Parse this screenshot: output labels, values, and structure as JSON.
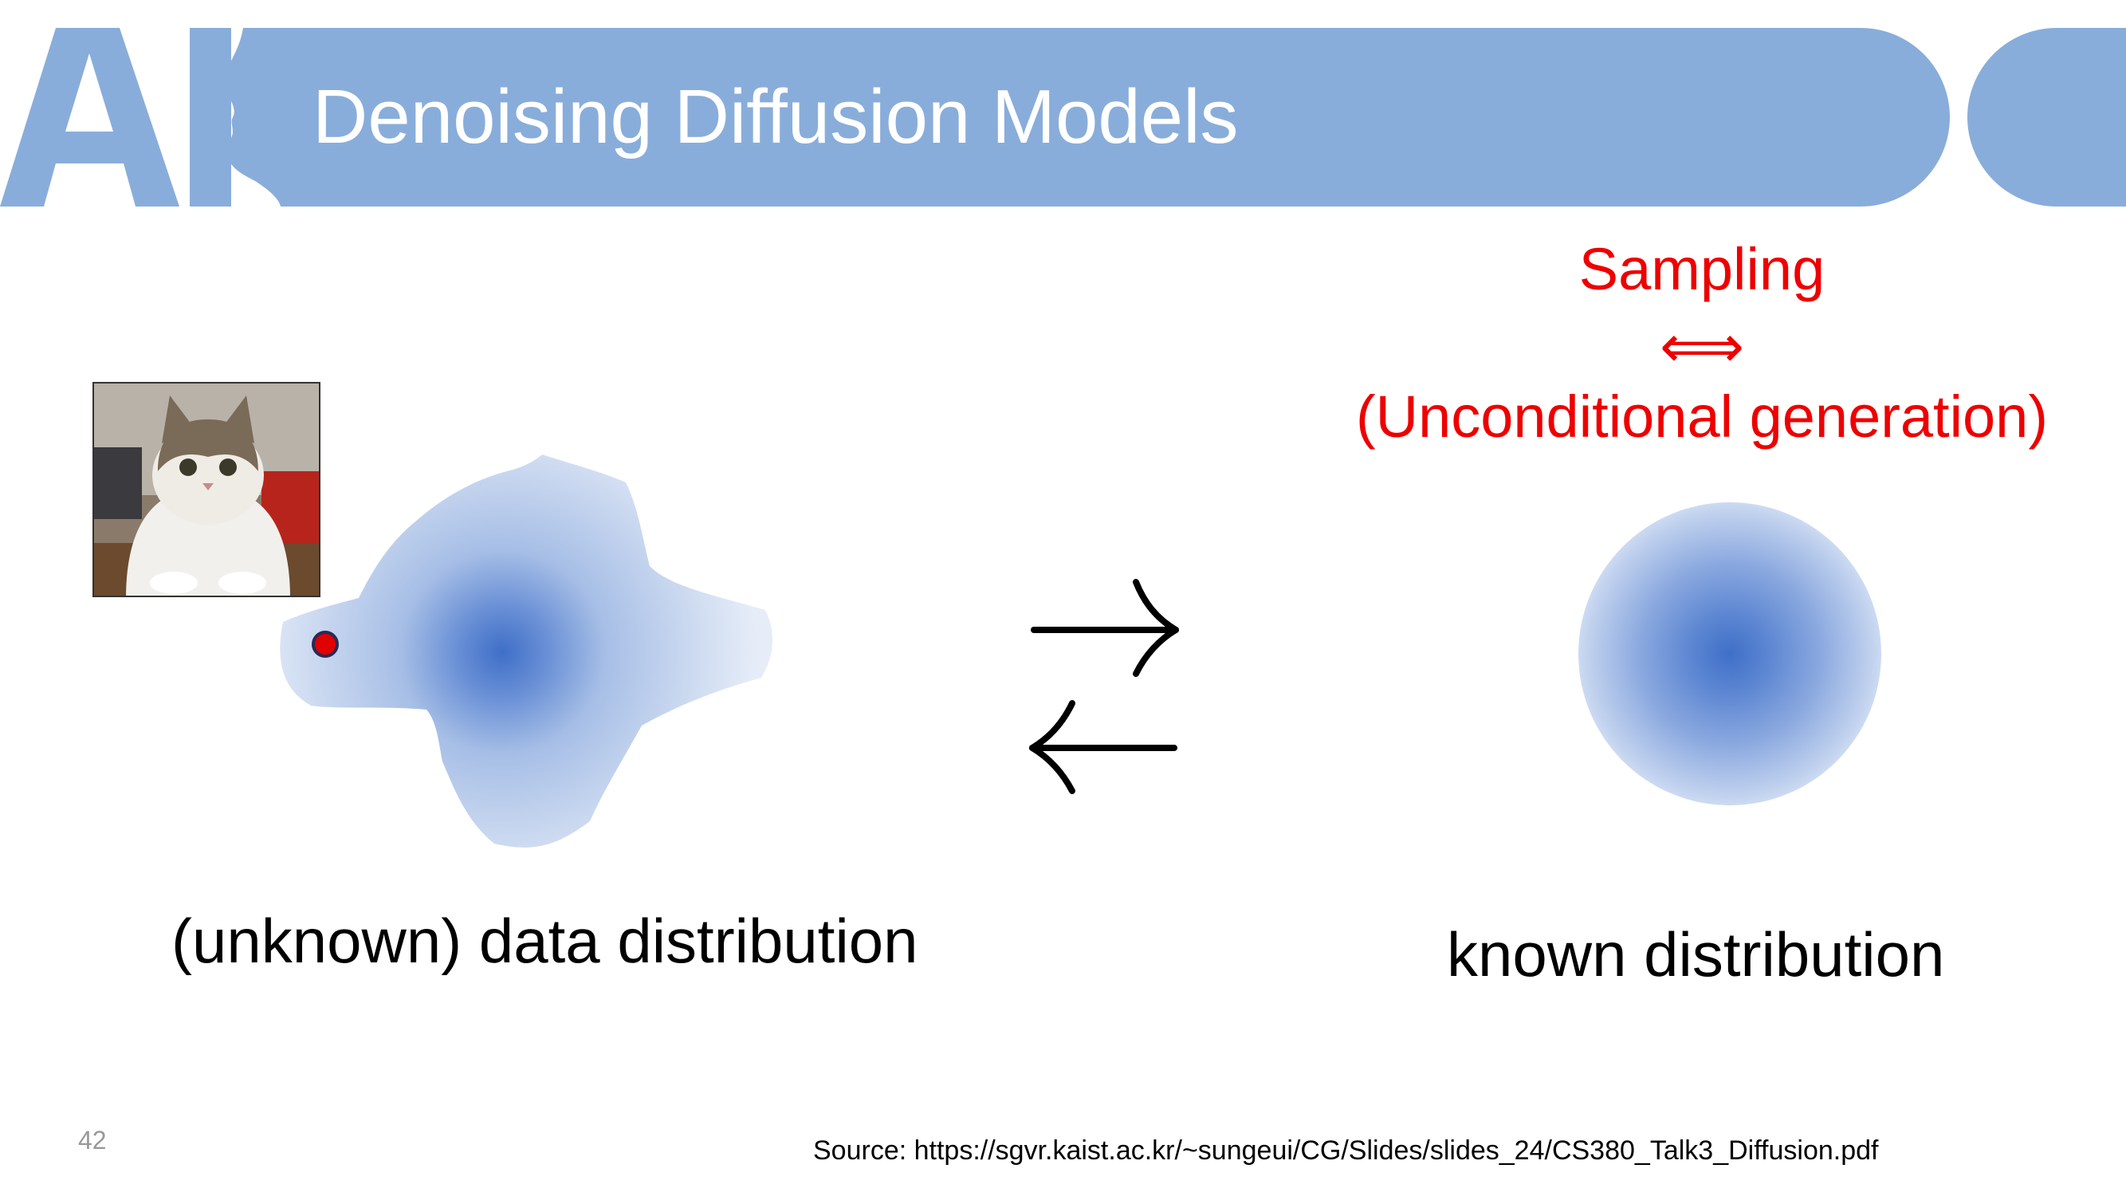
{
  "slide": {
    "title": "Denoising Diffusion Models",
    "page_number": "42",
    "source": "Source: https://sgvr.kaist.ac.kr/~sungeui/CG/Slides/slides_24/CS380_Talk3_Diffusion.pdf"
  },
  "logo": {
    "text": "AI",
    "icon": "ai-head-logo-icon"
  },
  "sampling": {
    "line1": "Sampling",
    "line2": "⟺",
    "line3": "(Unconditional generation)"
  },
  "diagram": {
    "left_caption": "(unknown) data distribution",
    "right_caption": "known distribution",
    "forward_arrow_icon": "right-harpoon-arrow-icon",
    "reverse_arrow_icon": "left-harpoon-arrow-icon",
    "sample_image_icon": "cat-photo-icon"
  },
  "colors": {
    "header": "#89ADDA",
    "accent_text": "#EE0000",
    "distribution_core": "#3F6FC8",
    "sample_point": "#E00000"
  }
}
